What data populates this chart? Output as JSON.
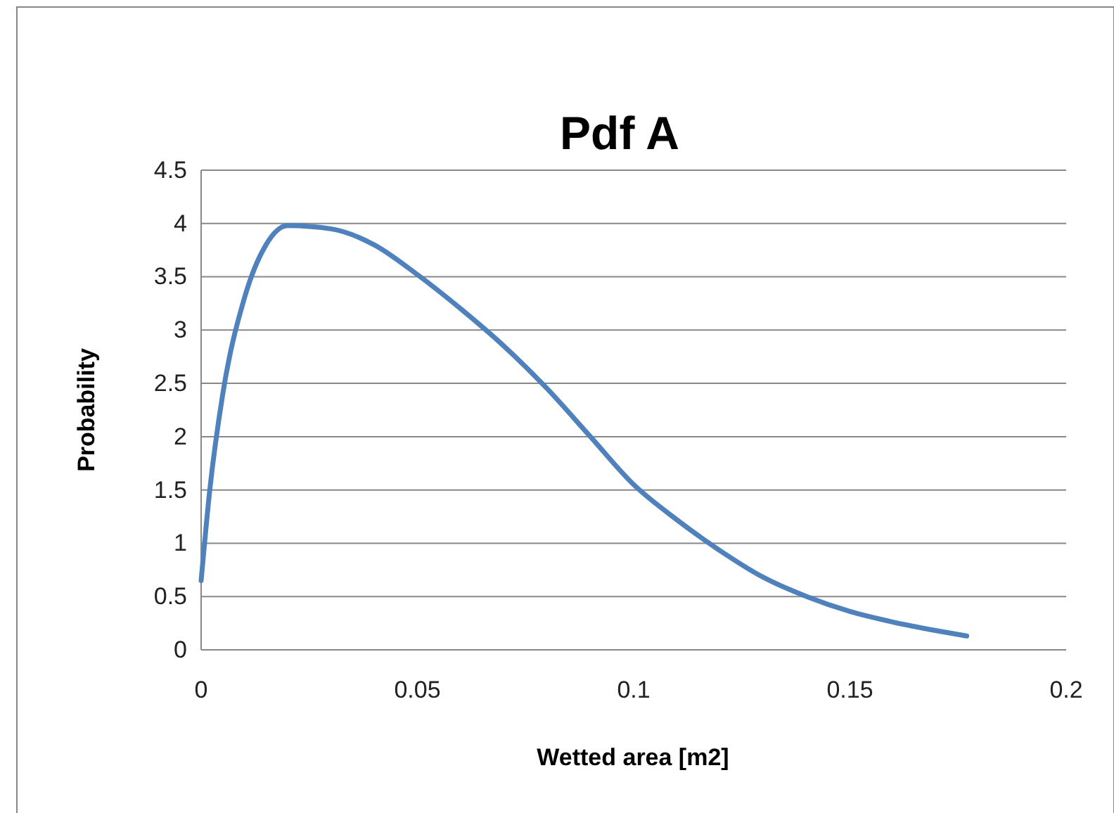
{
  "chart_data": {
    "type": "line",
    "title": "Pdf A",
    "xlabel": "Wetted area [m2]",
    "ylabel": "Probability",
    "xlim": [
      0,
      0.2
    ],
    "xticks": [
      0,
      0.05,
      0.1,
      0.15,
      0.2
    ],
    "ylim": [
      0,
      4.5
    ],
    "yticks": [
      0,
      0.5,
      1,
      1.5,
      2,
      2.5,
      3,
      3.5,
      4,
      4.5
    ],
    "grid": "y",
    "marker": "none",
    "line_style": "solid",
    "series": [
      {
        "color": "#4f81bd",
        "x": [
          0,
          0.002,
          0.005,
          0.01,
          0.015,
          0.02,
          0.03,
          0.04,
          0.05,
          0.06,
          0.07,
          0.08,
          0.09,
          0.1,
          0.11,
          0.12,
          0.13,
          0.14,
          0.15,
          0.16,
          0.17,
          0.177
        ],
        "values": [
          0.65,
          1.5,
          2.4,
          3.3,
          3.8,
          3.98,
          3.95,
          3.8,
          3.52,
          3.2,
          2.85,
          2.45,
          2.0,
          1.55,
          1.22,
          0.93,
          0.68,
          0.5,
          0.36,
          0.26,
          0.18,
          0.13
        ]
      }
    ]
  }
}
